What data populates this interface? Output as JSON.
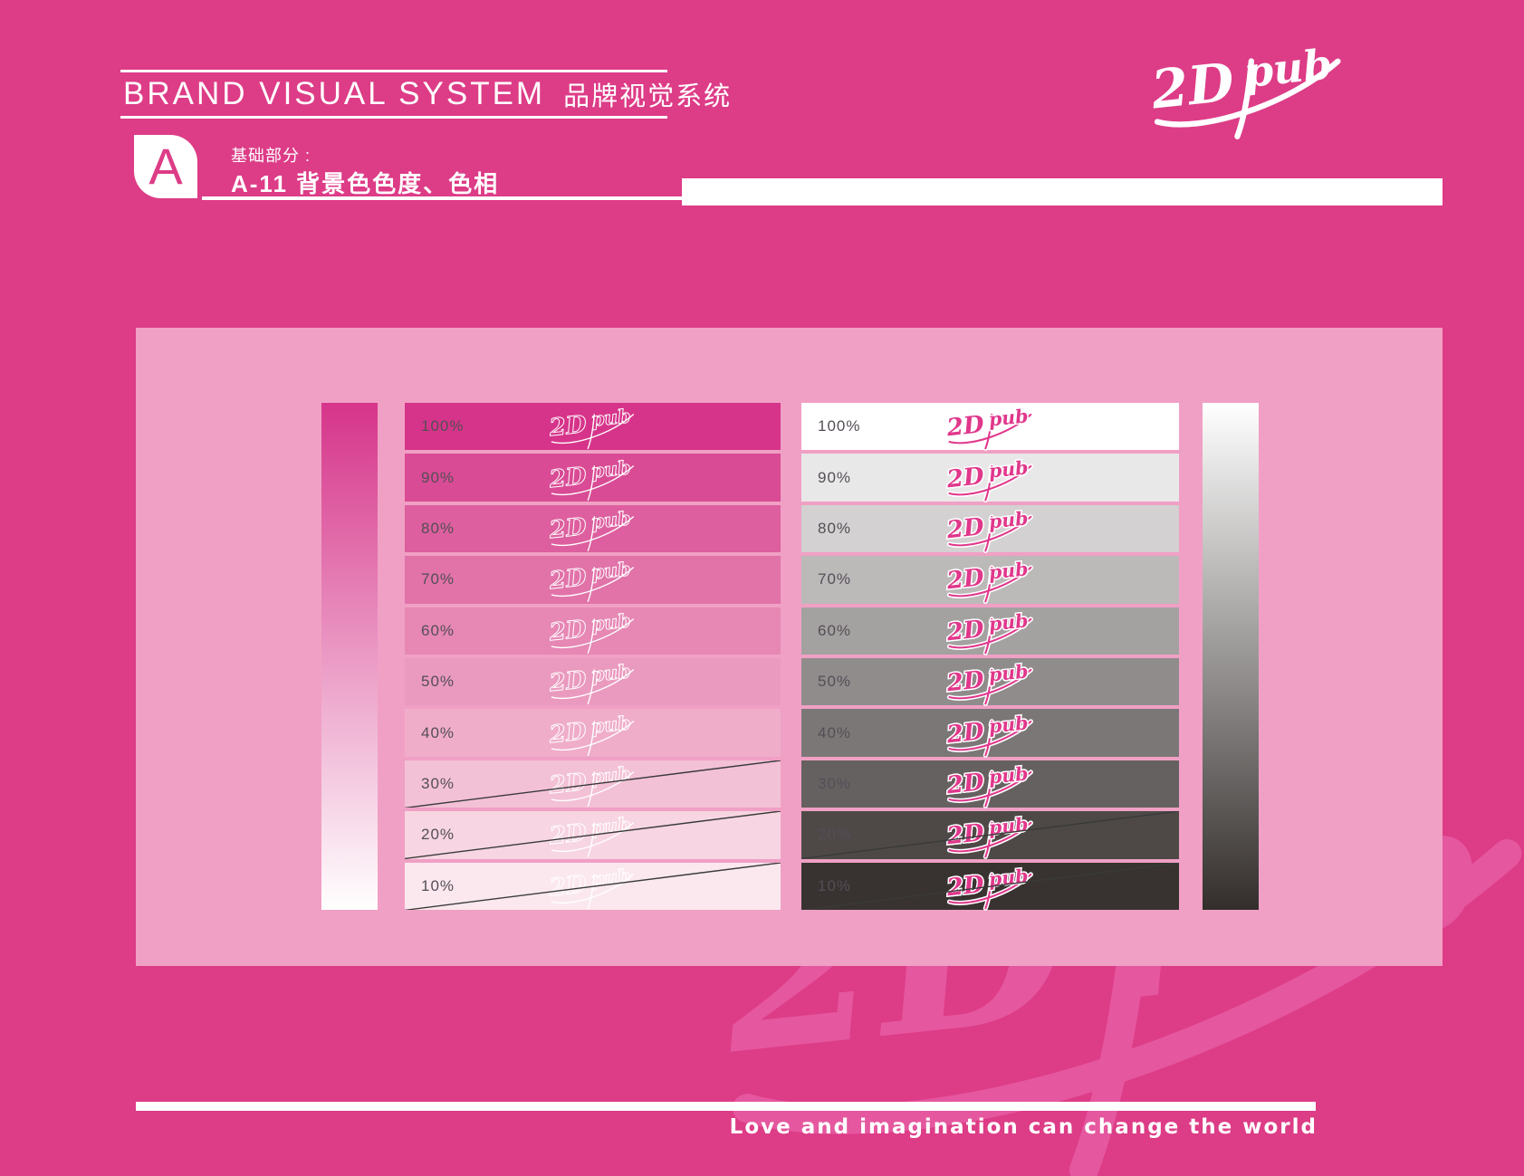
{
  "colors": {
    "page_bg": "#dd3c87",
    "panel_bg": "#f0a0c4",
    "brand_pink": "#d6348a",
    "logo_pink": "#e0378b",
    "watermark_pink": "#e5579f",
    "strike_line": "#3a3a3a",
    "label_color": "#544e56",
    "white": "#ffffff"
  },
  "header": {
    "title_en": "BRAND VISUAL SYSTEM",
    "title_zh": "品牌视觉系统",
    "badge_letter": "A",
    "section_label": "基础部分 :",
    "section_title": "A-11 背景色色度、色相"
  },
  "logo": {
    "text": "2D pub",
    "part1": "2D",
    "part2": "pub"
  },
  "tint_chart": {
    "pink_column": {
      "gradient_top": "#d6348a",
      "gradient_bottom": "#ffffff",
      "logo_style": "white-outline",
      "rows": [
        {
          "label": "100%",
          "color": "#d6348a",
          "struck": false
        },
        {
          "label": "90%",
          "color": "#d94b95",
          "struck": false
        },
        {
          "label": "80%",
          "color": "#dd5f9f",
          "struck": false
        },
        {
          "label": "70%",
          "color": "#e173a9",
          "struck": false
        },
        {
          "label": "60%",
          "color": "#e687b4",
          "struck": false
        },
        {
          "label": "50%",
          "color": "#ea9abf",
          "struck": false
        },
        {
          "label": "40%",
          "color": "#efadca",
          "struck": false
        },
        {
          "label": "30%",
          "color": "#f3c1d6",
          "struck": true
        },
        {
          "label": "20%",
          "color": "#f7d5e2",
          "struck": true
        },
        {
          "label": "10%",
          "color": "#fbe8ef",
          "struck": true
        }
      ]
    },
    "gray_column": {
      "gradient_top": "#ffffff",
      "gradient_bottom": "#332e2c",
      "logo_style": "pink-with-white-outline",
      "rows": [
        {
          "label": "100%",
          "color": "#ffffff",
          "struck": false
        },
        {
          "label": "90%",
          "color": "#e9e8e8",
          "struck": false
        },
        {
          "label": "80%",
          "color": "#d3d1d1",
          "struck": false
        },
        {
          "label": "70%",
          "color": "#bcb9b9",
          "struck": false
        },
        {
          "label": "60%",
          "color": "#a4a1a1",
          "struck": false
        },
        {
          "label": "50%",
          "color": "#908c8c",
          "struck": false
        },
        {
          "label": "40%",
          "color": "#7c7777",
          "struck": false
        },
        {
          "label": "30%",
          "color": "#666161",
          "struck": false
        },
        {
          "label": "20%",
          "color": "#4e4947",
          "struck": true
        },
        {
          "label": "10%",
          "color": "#383331",
          "struck": true
        }
      ]
    }
  },
  "footer": {
    "slogan": "Love and imagination can change the world"
  }
}
